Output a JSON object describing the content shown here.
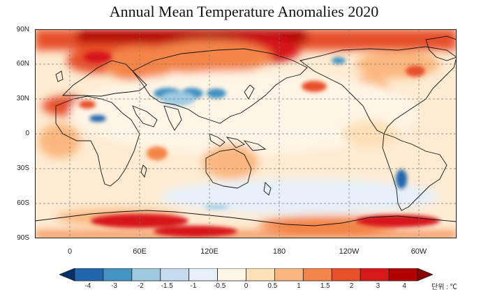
{
  "title": "Annual Mean Temperature Anomalies 2020",
  "lat_labels": [
    "90N",
    "60N",
    "30N",
    "0",
    "30S",
    "60S",
    "90S"
  ],
  "lon_labels": [
    "0",
    "60E",
    "120E",
    "180",
    "120W",
    "60W"
  ],
  "colorbar": {
    "labels": [
      "-4",
      "-3",
      "-2",
      "-1.5",
      "-1",
      "-0.5",
      "0",
      "0.5",
      "1",
      "1.5",
      "2",
      "3",
      "4"
    ],
    "colors": [
      "#08306b",
      "#2166ac",
      "#4393c3",
      "#9ecae1",
      "#c6dbef",
      "#e6f0fa",
      "#fff5e6",
      "#fde0b8",
      "#fbb77f",
      "#f4854a",
      "#e8502a",
      "#d7191c",
      "#b30000",
      "#8b0000"
    ],
    "unit": "단위 : ℃"
  }
}
